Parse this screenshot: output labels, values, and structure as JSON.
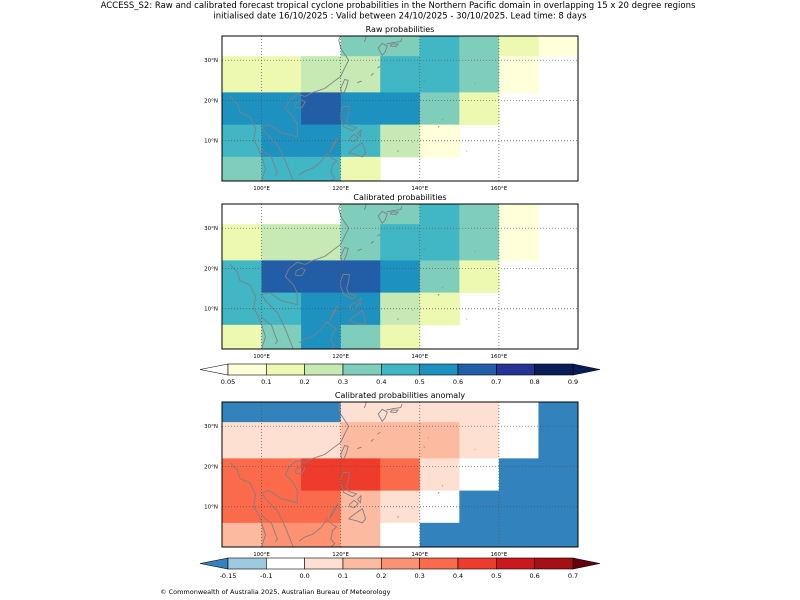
{
  "figure": {
    "title_line1": "ACCESS_S2: Raw and calibrated forecast tropical cyclone probabilities in the Northern Pacific domain in overlapping 15 x 20 degree regions",
    "title_line2": "initialised date 16/10/2025 :  Valid between 24/10/2025 - 30/10/2025. Lead time: 8 days",
    "copyright": "© Commonwealth of Australia 2025, Australian Bureau of Meteorology"
  },
  "colors": {
    "prob_bins": [
      "#ffffd9",
      "#edf8b1",
      "#c7e9b4",
      "#7fcdbb",
      "#41b6c4",
      "#1d91c0",
      "#225ea8",
      "#253494",
      "#081d58"
    ],
    "prob_under": "#ffffff",
    "prob_over": "#081d58",
    "anom_bins": [
      "#9ecae1",
      "#ffffff",
      "#fee0d2",
      "#fcbba1",
      "#fc9272",
      "#fb6a4a",
      "#ef3b2c",
      "#cb181d",
      "#a50f15"
    ],
    "anom_under": "#3182bd",
    "anom_over": "#67000d",
    "coast": "#808080",
    "grid": "#555555"
  },
  "chart_data": [
    {
      "type": "heatmap",
      "title": "Raw probabilities",
      "x_ticks": [
        100,
        120,
        140,
        160
      ],
      "x_tick_labels": [
        "100°E",
        "120°E",
        "140°E",
        "160°E"
      ],
      "y_ticks": [
        10,
        20,
        30
      ],
      "y_tick_labels": [
        "10°N",
        "20°N",
        "30°N"
      ],
      "lon_range": [
        90,
        180
      ],
      "lat_range": [
        0,
        36
      ],
      "cell_lon_edges": [
        90,
        100,
        110,
        120,
        130,
        140,
        150,
        160,
        170,
        180
      ],
      "cell_lat_edges": [
        0,
        6,
        14,
        22,
        31,
        36
      ],
      "rows_top_to_bottom": [
        [
          null,
          null,
          null,
          0.35,
          0.35,
          0.45,
          0.35,
          0.15,
          0.08
        ],
        [
          0.15,
          0.15,
          0.25,
          0.25,
          0.45,
          0.45,
          0.35,
          0.08,
          null
        ],
        [
          0.5,
          0.5,
          0.6,
          0.55,
          0.55,
          0.3,
          0.1,
          null,
          null
        ],
        [
          0.45,
          0.55,
          0.55,
          0.45,
          0.2,
          0.08,
          null,
          null,
          null
        ],
        [
          0.3,
          0.45,
          0.45,
          0.1,
          null,
          null,
          null,
          null,
          null
        ]
      ]
    },
    {
      "type": "heatmap",
      "title": "Calibrated probabilities",
      "x_ticks": [
        100,
        120,
        140,
        160
      ],
      "x_tick_labels": [
        "100°E",
        "120°E",
        "140°E",
        "160°E"
      ],
      "y_ticks": [
        10,
        20,
        30
      ],
      "y_tick_labels": [
        "10°N",
        "20°N",
        "30°N"
      ],
      "lon_range": [
        90,
        180
      ],
      "lat_range": [
        0,
        36
      ],
      "cell_lon_edges": [
        90,
        100,
        110,
        120,
        130,
        140,
        150,
        160,
        170,
        180
      ],
      "cell_lat_edges": [
        0,
        6,
        14,
        22,
        31,
        36
      ],
      "rows_top_to_bottom": [
        [
          null,
          null,
          null,
          0.35,
          0.35,
          0.45,
          0.35,
          0.08,
          null
        ],
        [
          0.15,
          0.25,
          0.25,
          0.35,
          0.45,
          0.45,
          0.35,
          0.08,
          null
        ],
        [
          0.45,
          0.65,
          0.65,
          0.6,
          0.55,
          0.3,
          0.1,
          null,
          null
        ],
        [
          0.45,
          0.45,
          0.55,
          0.55,
          0.25,
          0.1,
          null,
          null,
          null
        ],
        [
          0.15,
          0.35,
          0.5,
          0.3,
          0.1,
          null,
          null,
          null,
          null
        ]
      ]
    },
    {
      "type": "heatmap",
      "title": "Calibrated probabilities anomaly",
      "x_ticks": [
        100,
        120,
        140,
        160
      ],
      "x_tick_labels": [
        "100°E",
        "120°E",
        "140°E",
        "160°E"
      ],
      "y_ticks": [
        10,
        20,
        30
      ],
      "y_tick_labels": [
        "10°N",
        "20°N",
        "30°N"
      ],
      "lon_range": [
        90,
        180
      ],
      "lat_range": [
        0,
        36
      ],
      "cell_lon_edges": [
        90,
        100,
        110,
        120,
        130,
        140,
        150,
        160,
        170,
        180
      ],
      "cell_lat_edges": [
        0,
        6,
        14,
        22,
        31,
        36
      ],
      "rows_top_to_bottom": [
        [
          -0.2,
          -0.2,
          -0.2,
          0.0,
          0.05,
          0.05,
          0.05,
          -0.1,
          -0.2
        ],
        [
          0.0,
          0.05,
          0.05,
          0.15,
          0.15,
          0.15,
          0.05,
          -0.1,
          -0.2
        ],
        [
          0.3,
          0.35,
          0.45,
          0.4,
          0.3,
          0.05,
          -0.1,
          -0.2,
          -0.2
        ],
        [
          0.3,
          0.35,
          0.35,
          0.15,
          0.05,
          -0.1,
          -0.2,
          -0.2,
          -0.2
        ],
        [
          0.15,
          0.25,
          0.25,
          0.15,
          -0.1,
          -0.2,
          -0.2,
          -0.2,
          -0.2
        ]
      ]
    }
  ],
  "colorbars": [
    {
      "name": "probability",
      "boundaries": [
        0.05,
        0.1,
        0.2,
        0.3,
        0.4,
        0.5,
        0.6,
        0.7,
        0.8,
        0.9
      ],
      "labels": [
        "0.05",
        "0.1",
        "0.2",
        "0.3",
        "0.4",
        "0.5",
        "0.6",
        "0.7",
        "0.8",
        "0.9"
      ]
    },
    {
      "name": "anomaly",
      "boundaries": [
        -0.15,
        -0.1,
        0.0,
        0.1,
        0.2,
        0.3,
        0.4,
        0.5,
        0.6,
        0.7
      ],
      "labels": [
        "-0.15",
        "-0.1",
        "0.0",
        "0.1",
        "0.2",
        "0.3",
        "0.4",
        "0.5",
        "0.6",
        "0.7"
      ]
    }
  ]
}
